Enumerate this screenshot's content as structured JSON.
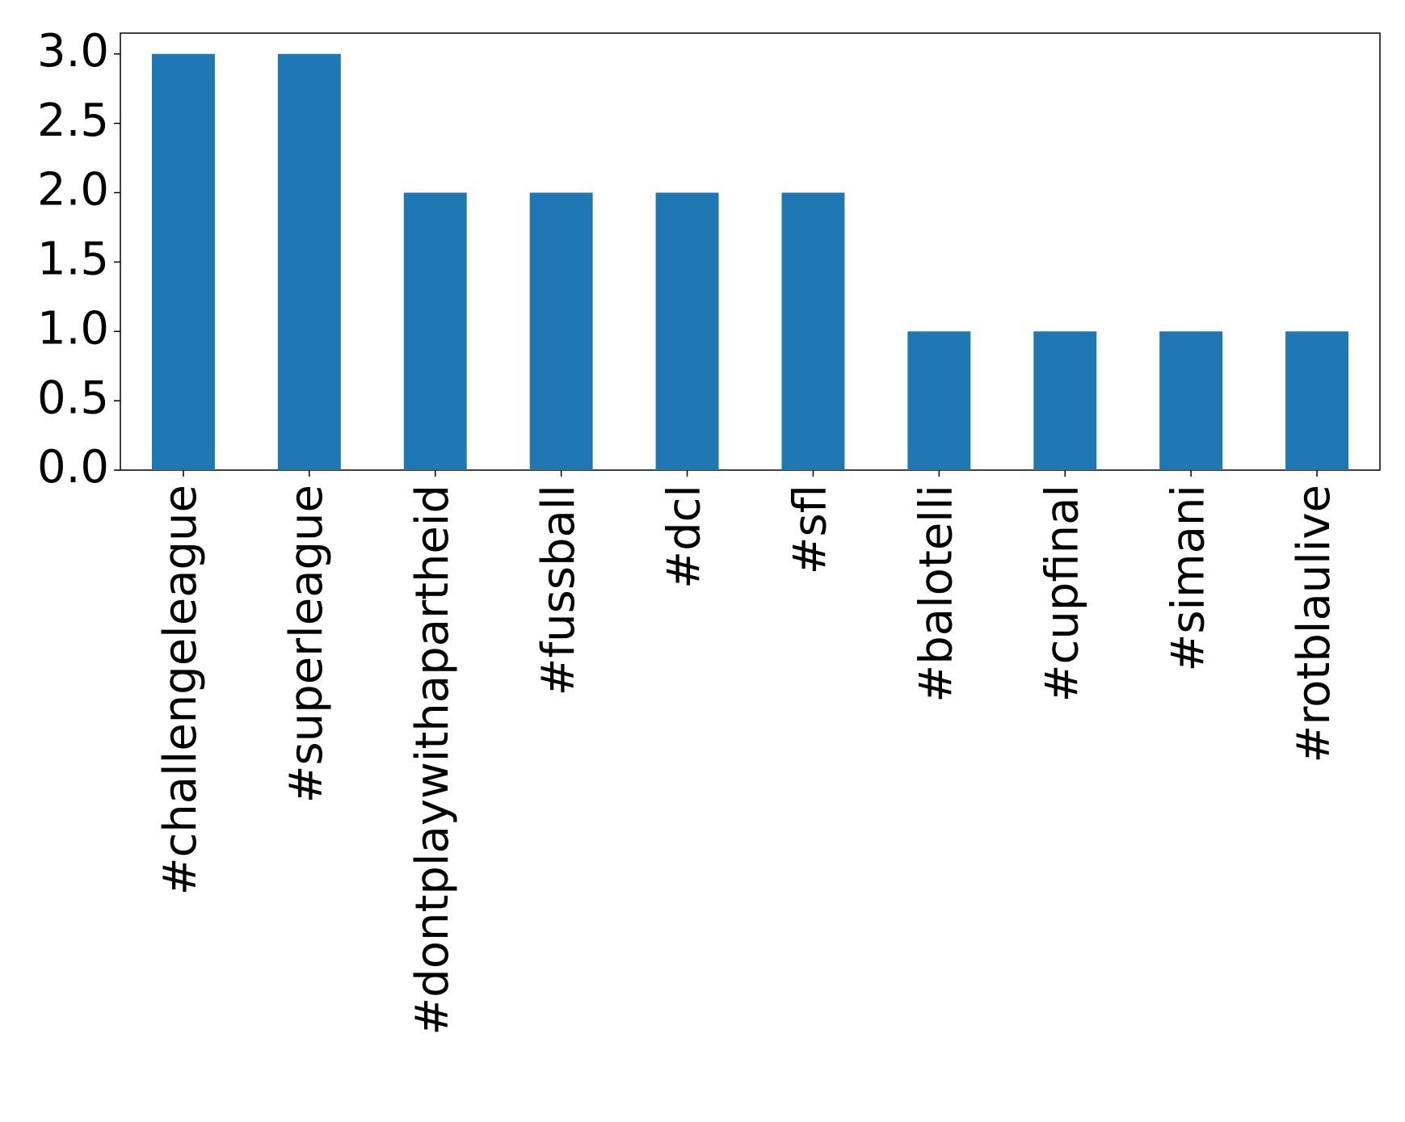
{
  "chart_data": {
    "type": "bar",
    "categories": [
      "#challengeleague",
      "#superleague",
      "#dontplaywithapartheid",
      "#fussball",
      "#dcl",
      "#sfl",
      "#balotelli",
      "#cupfinal",
      "#simani",
      "#rotblaulive"
    ],
    "values": [
      3,
      3,
      2,
      2,
      2,
      2,
      1,
      1,
      1,
      1
    ],
    "color": "#1f77b4",
    "ylim": [
      0,
      3.15
    ],
    "yticks": [
      {
        "value": 0,
        "label": "0.0"
      },
      0.5,
      {
        "value": 1,
        "label": "1.0"
      },
      1.5,
      {
        "value": 2,
        "label": "2.0"
      },
      2.5,
      {
        "value": 3,
        "label": "3.0"
      }
    ],
    "grid": false
  }
}
